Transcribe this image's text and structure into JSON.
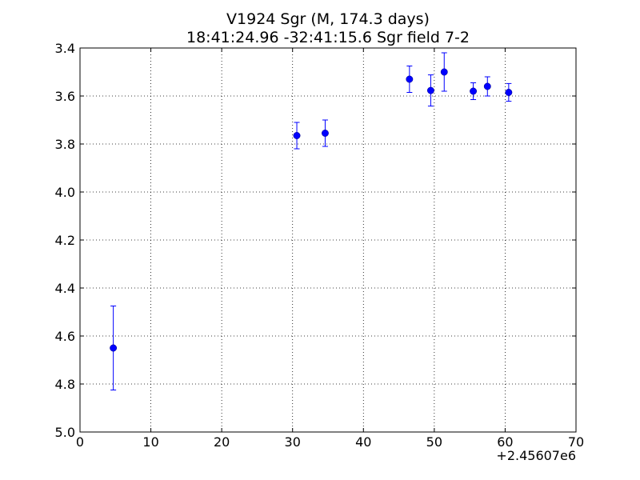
{
  "chart_data": {
    "type": "scatter",
    "title": "V1924 Sgr  (M, 174.3 days)",
    "subtitle": "18:41:24.96 -32:41:15.6 Sgr field 7-2",
    "xlabel": "",
    "ylabel": "",
    "x_offset_label": "+2.45607e6",
    "xlim": [
      0,
      70
    ],
    "ylim": [
      5.0,
      3.4
    ],
    "y_inverted": true,
    "grid": true,
    "x_ticks": [
      0,
      10,
      20,
      30,
      40,
      50,
      60,
      70
    ],
    "y_ticks": [
      3.4,
      3.6,
      3.8,
      4.0,
      4.2,
      4.4,
      4.6,
      4.8,
      5.0
    ],
    "marker_color": "#0000ff",
    "points": [
      {
        "x": 4.7,
        "y": 4.65,
        "err": 0.175
      },
      {
        "x": 30.6,
        "y": 3.765,
        "err": 0.055
      },
      {
        "x": 34.6,
        "y": 3.755,
        "err": 0.055
      },
      {
        "x": 46.5,
        "y": 3.53,
        "err": 0.055
      },
      {
        "x": 49.5,
        "y": 3.577,
        "err": 0.065
      },
      {
        "x": 51.4,
        "y": 3.5,
        "err": 0.08
      },
      {
        "x": 55.5,
        "y": 3.58,
        "err": 0.035
      },
      {
        "x": 57.5,
        "y": 3.56,
        "err": 0.04
      },
      {
        "x": 60.5,
        "y": 3.585,
        "err": 0.037
      }
    ]
  }
}
